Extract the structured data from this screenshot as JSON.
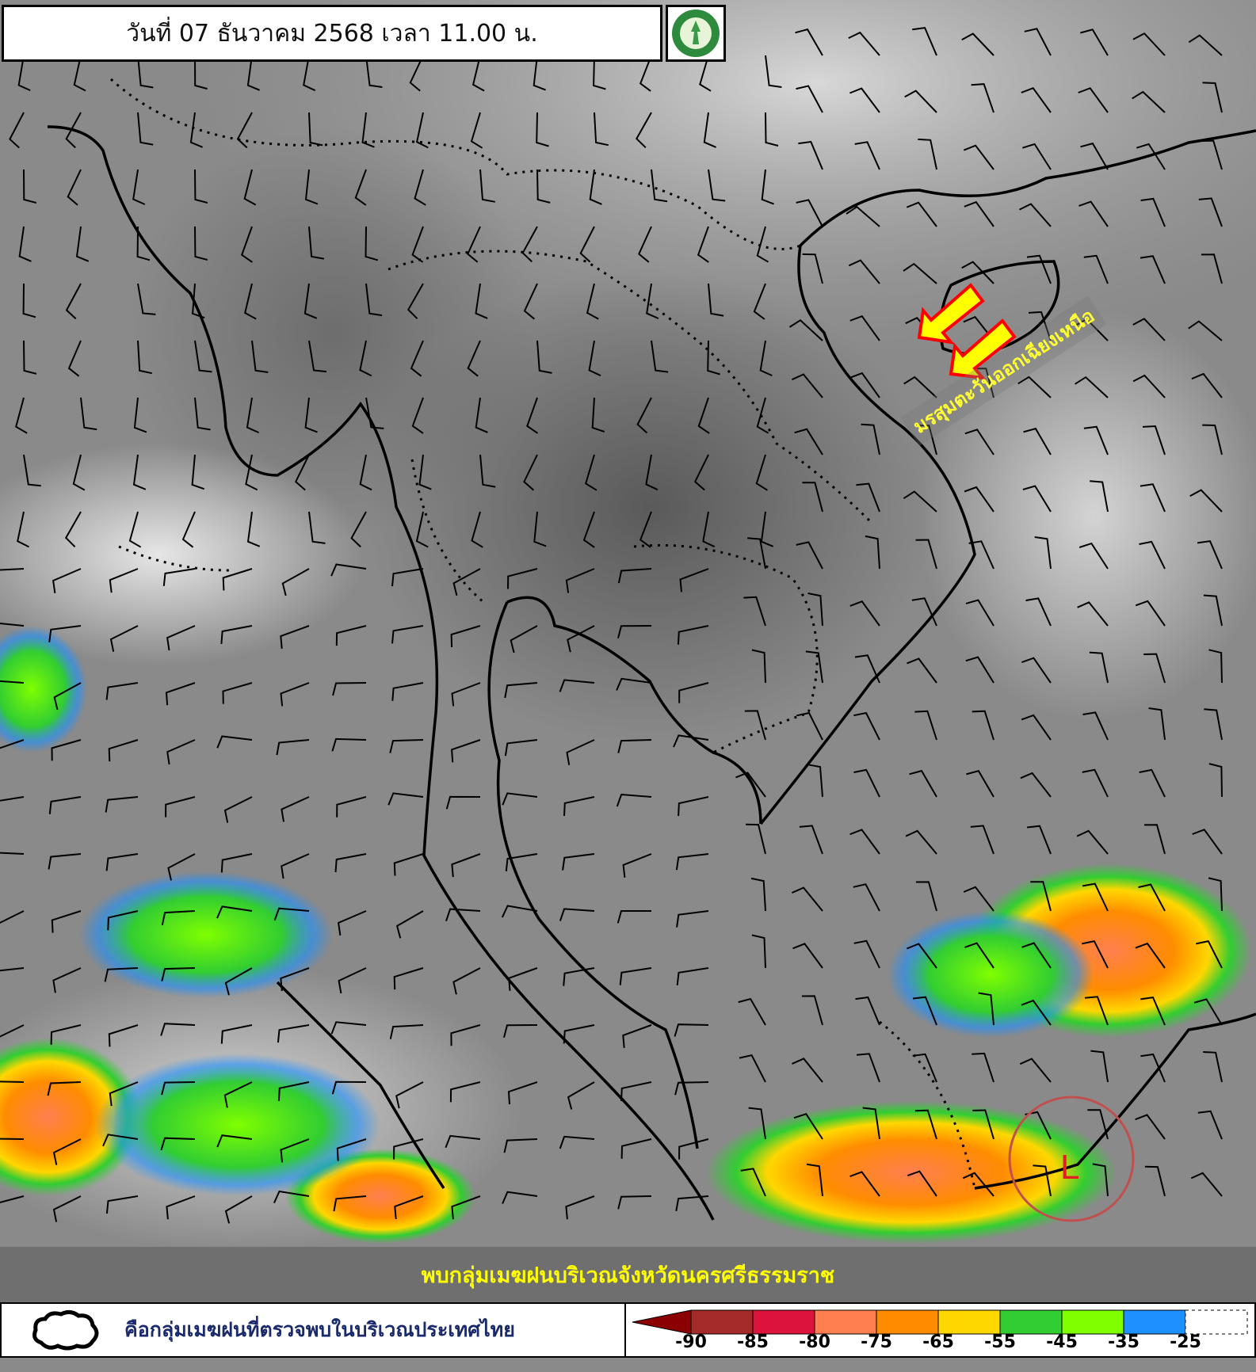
{
  "header": {
    "title": "วันที่ 07 ธันวาคม 2568 เวลา 11.00 น."
  },
  "logo": {
    "icon": "tmd-logo-icon"
  },
  "annotations": {
    "monsoon_label": "มรสุมตะวันออกเฉียงเหนือ",
    "arrow_color": "#ffff00",
    "arrow_outline": "#ff0000",
    "low_pressure_label": "L",
    "low_circle_color": "#c0504d"
  },
  "banner": {
    "text": "พบกลุ่มเมฆฝนบริเวณจังหวัดนครศรีธรรมราช"
  },
  "legend": {
    "cloud_icon": "cloud-outline-icon",
    "cloud_text": "คือกลุ่มเมฆฝนที่ตรวจพบในบริเวณประเทศไทย",
    "scale": [
      {
        "color": "#8b0000"
      },
      {
        "color": "#a52a2a"
      },
      {
        "color": "#dc143c"
      },
      {
        "color": "#ff7f50"
      },
      {
        "color": "#ff8c00"
      },
      {
        "color": "#ffd700"
      },
      {
        "color": "#32cd32"
      },
      {
        "color": "#7fff00"
      },
      {
        "color": "#1e90ff"
      },
      {
        "color": "#ffffff"
      }
    ],
    "labels": [
      "-90",
      "-85",
      "-80",
      "-75",
      "-65",
      "-55",
      "-45",
      "-35",
      "-25"
    ]
  }
}
